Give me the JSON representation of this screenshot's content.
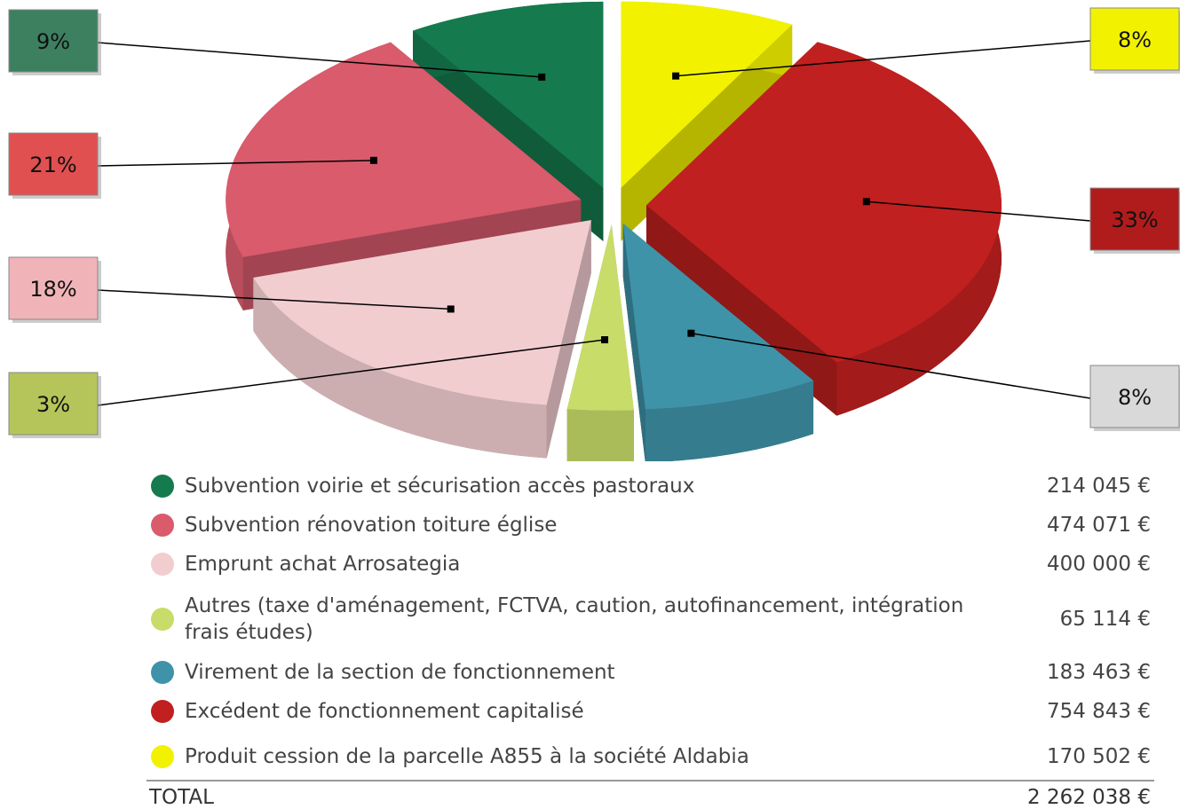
{
  "chart_data": {
    "type": "pie",
    "categories": [
      "Subvention voirie et sécurisation accès pastoraux",
      "Subvention rénovation toiture église",
      "Emprunt achat Arrosategia",
      "Autres (taxe d'aménagement, FCTVA, caution, autofinancement, intégration frais études)",
      "Virement de la section de fonctionnement",
      "Excédent de fonctionnement capitalisé",
      "Produit cession de la parcelle A855 à la société Aldabia"
    ],
    "values": [
      9,
      21,
      18,
      3,
      8,
      33,
      8
    ],
    "value_labels": [
      "9%",
      "21%",
      "18%",
      "3%",
      "8%",
      "33%",
      "8%"
    ],
    "colors": [
      "#157a4e",
      "#d95b6c",
      "#f2cdd0",
      "#c8dc6a",
      "#3f93a8",
      "#c0201f",
      "#f2f200"
    ],
    "label_colors": [
      "#3d8060",
      "#e05050",
      "#f0b4b8",
      "#b5c55a",
      "#d9d9d9",
      "#b01c1c",
      "#f2f200"
    ],
    "amounts": [
      "214 045 €",
      "474 071 €",
      "400 000 €",
      "65 114 €",
      "183 463 €",
      "754 843 €",
      "170 502 €"
    ],
    "total_label": "TOTAL",
    "total": "2 262 038 €"
  }
}
